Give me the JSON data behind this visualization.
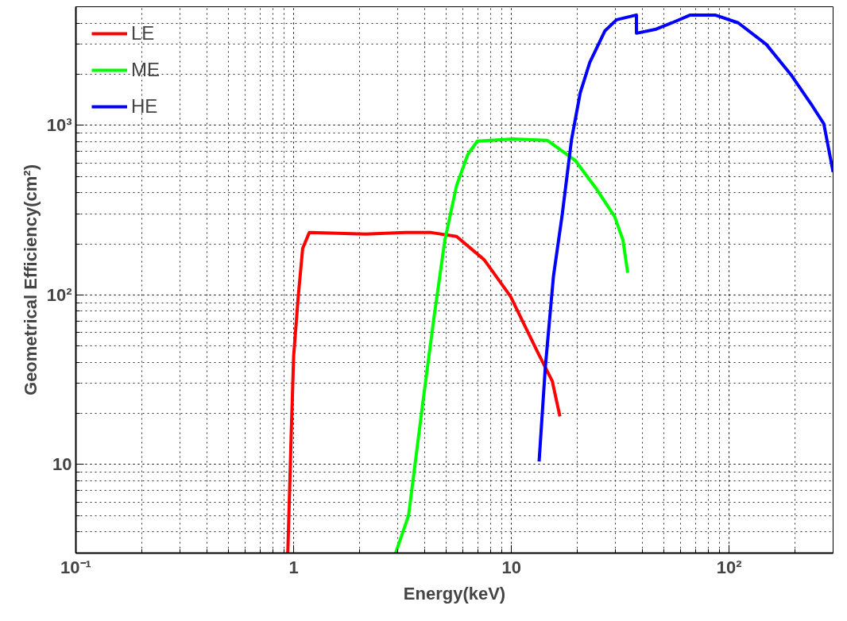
{
  "chart_data": {
    "type": "line",
    "xlabel": "Energy(keV)",
    "ylabel": "Geometrical Efficiency(cm²)",
    "log": "xy",
    "grid": true,
    "legend": "top left",
    "line_style": "solid",
    "marker": "none",
    "xlim": [
      0.1,
      300
    ],
    "ylim": [
      3,
      5000
    ],
    "xticks": [
      {
        "value": 0.1,
        "label": "10⁻¹"
      },
      1,
      10,
      {
        "value": 100,
        "label": "10²"
      }
    ],
    "yticks": [
      10,
      {
        "value": 100,
        "label": "10²"
      },
      {
        "value": 1000,
        "label": "10³"
      }
    ],
    "series": [
      {
        "name": "LE",
        "color": "#ff0000",
        "x": [
          0.94,
          0.975,
          1.0,
          1.05,
          1.1,
          1.18,
          2.14,
          3.26,
          4.29,
          5.6,
          7.5,
          9.9,
          13.3,
          15.4,
          16.7
        ],
        "values": [
          3,
          15.4,
          43.6,
          98,
          188,
          233,
          228,
          233,
          233,
          221,
          161,
          98,
          45,
          31,
          19.2
        ]
      },
      {
        "name": "ME",
        "color": "#00ff00",
        "x": [
          2.94,
          3.37,
          3.91,
          4.4,
          4.95,
          5.6,
          6.3,
          6.97,
          10.2,
          14.6,
          19.6,
          24.4,
          29.8,
          32.5,
          34.2
        ],
        "values": [
          3,
          5.0,
          22.6,
          72,
          211,
          441,
          671,
          806,
          830,
          815,
          622,
          427,
          289,
          211,
          135
        ]
      },
      {
        "name": "HE",
        "color": "#0000ff",
        "x": [
          13.4,
          14.3,
          15.6,
          17.1,
          18.9,
          20.7,
          22.9,
          26.9,
          30.4,
          37.5,
          37.5,
          46.2,
          54.6,
          66.3,
          86.1,
          110,
          148,
          192,
          240,
          272,
          300
        ],
        "values": [
          10.4,
          37,
          129,
          296,
          830,
          1555,
          2345,
          3610,
          4190,
          4470,
          3490,
          3690,
          4020,
          4470,
          4470,
          4020,
          3000,
          1990,
          1310,
          1020,
          530
        ]
      }
    ]
  }
}
